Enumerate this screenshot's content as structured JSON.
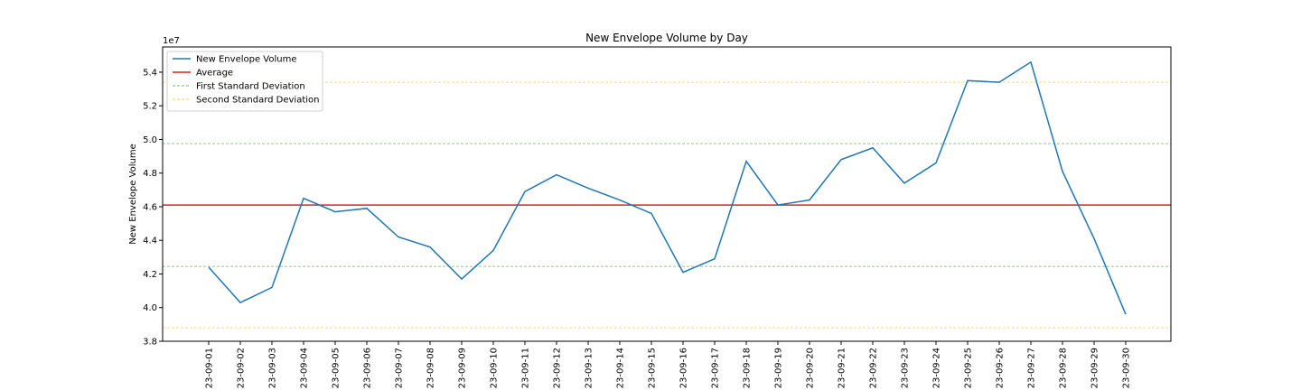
{
  "chart_data": {
    "type": "line",
    "title": "New Envelope Volume by Day",
    "xlabel": "",
    "ylabel": "New Envelope Volume",
    "y_offset_label": "1e7",
    "y_scale": 10000000,
    "ylim": [
      3.8,
      5.55
    ],
    "yticks": [
      3.8,
      4.0,
      4.2,
      4.4,
      4.6,
      4.8,
      5.0,
      5.2,
      5.4
    ],
    "grid": false,
    "legend_position": "top-left",
    "categories": [
      "23-09-01",
      "23-09-02",
      "23-09-03",
      "23-09-04",
      "23-09-05",
      "23-09-06",
      "23-09-07",
      "23-09-08",
      "23-09-09",
      "23-09-10",
      "23-09-11",
      "23-09-12",
      "23-09-13",
      "23-09-14",
      "23-09-15",
      "23-09-16",
      "23-09-17",
      "23-09-18",
      "23-09-19",
      "23-09-20",
      "23-09-21",
      "23-09-22",
      "23-09-23",
      "23-09-24",
      "23-09-25",
      "23-09-26",
      "23-09-27",
      "23-09-28",
      "23-09-29",
      "23-09-30"
    ],
    "series": [
      {
        "name": "New Envelope Volume",
        "color": "#1f77b4",
        "values": [
          4.24,
          4.03,
          4.12,
          4.65,
          4.57,
          4.59,
          4.42,
          4.36,
          4.17,
          4.34,
          4.69,
          4.79,
          4.71,
          4.64,
          4.56,
          4.21,
          4.29,
          4.87,
          4.61,
          4.64,
          4.88,
          4.95,
          4.74,
          4.86,
          5.35,
          5.34,
          5.46,
          4.81,
          4.41,
          3.96
        ]
      }
    ],
    "reference_lines": [
      {
        "name": "Average",
        "value": 4.61,
        "color": "#d62728",
        "style": "solid"
      },
      {
        "name": "First Standard Deviation",
        "values": [
          4.245,
          4.975
        ],
        "color": "#2ca02c",
        "style": "dashed"
      },
      {
        "name": "Second Standard Deviation",
        "values": [
          3.88,
          5.34
        ],
        "color": "#ffbf00",
        "style": "dashed"
      }
    ]
  }
}
